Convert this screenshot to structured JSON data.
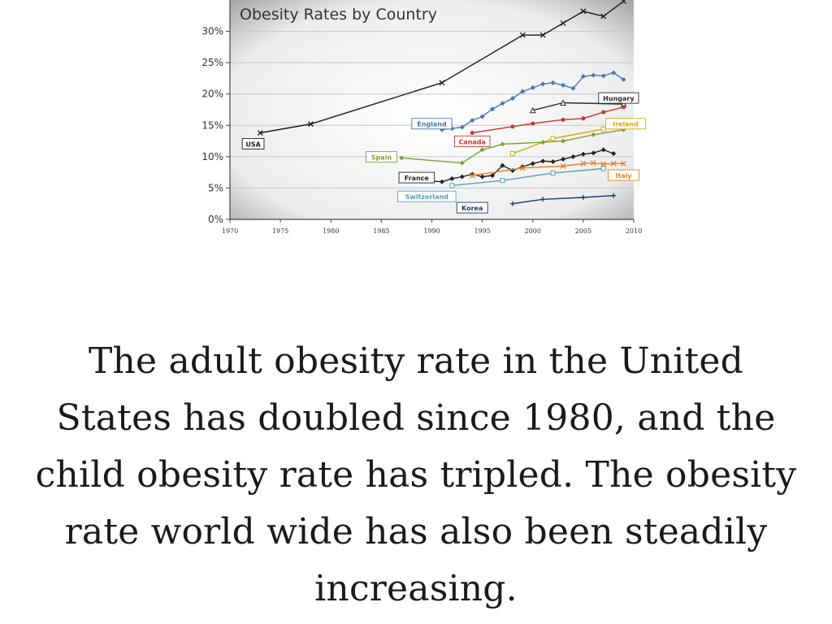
{
  "chart_data": {
    "type": "line",
    "title": "Obesity Rates by Country",
    "xlabel": "",
    "ylabel": "",
    "xlim": [
      1970,
      2010
    ],
    "ylim": [
      0,
      35
    ],
    "grid": true,
    "legend": "inline labels",
    "y_ticks": [
      {
        "value": 0,
        "label": "0%"
      },
      {
        "value": 5,
        "label": "5%"
      },
      {
        "value": 10,
        "label": "10%"
      },
      {
        "value": 15,
        "label": "15%"
      },
      {
        "value": 20,
        "label": "20%"
      },
      {
        "value": 25,
        "label": "25%"
      },
      {
        "value": 30,
        "label": "30%"
      }
    ],
    "x_ticks": [
      {
        "value": 1970,
        "label": "1970"
      },
      {
        "value": 1975,
        "label": "1975"
      },
      {
        "value": 1980,
        "label": "1980"
      },
      {
        "value": 1985,
        "label": "1985"
      },
      {
        "value": 1990,
        "label": "1990"
      },
      {
        "value": 1995,
        "label": "1995"
      },
      {
        "value": 2000,
        "label": "2000"
      },
      {
        "value": 2005,
        "label": "2005"
      },
      {
        "value": 2010,
        "label": "2010"
      }
    ],
    "series": [
      {
        "name": "USA",
        "color": "#1a1a1a",
        "marker": "x",
        "x": [
          1973,
          1978,
          1991,
          1999,
          2001,
          2003,
          2005,
          2007,
          2009
        ],
        "y": [
          13.8,
          15.2,
          21.8,
          29.4,
          29.4,
          31.3,
          33.2,
          32.4,
          34.8
        ]
      },
      {
        "name": "England",
        "color": "#4a76b8",
        "marker": "diamond",
        "x": [
          1991,
          1992,
          1993,
          1994,
          1995,
          1996,
          1997,
          1998,
          1999,
          2000,
          2001,
          2002,
          2003,
          2004,
          2005,
          2006,
          2007,
          2008,
          2009
        ],
        "y": [
          14.3,
          14.5,
          14.7,
          15.8,
          16.4,
          17.6,
          18.5,
          19.3,
          20.4,
          21.0,
          21.6,
          21.8,
          21.4,
          20.9,
          22.8,
          23.0,
          22.9,
          23.4,
          22.3
        ]
      },
      {
        "name": "Hungary",
        "color": "#2a2a2a",
        "marker": "triangle",
        "x": [
          2000,
          2003,
          2009
        ],
        "y": [
          17.4,
          18.6,
          18.4
        ]
      },
      {
        "name": "Canada",
        "color": "#c0392b",
        "marker": "circle",
        "x": [
          1994,
          1998,
          2000,
          2003,
          2005,
          2007,
          2009
        ],
        "y": [
          13.8,
          14.8,
          15.3,
          15.9,
          16.1,
          17.1,
          17.9
        ]
      },
      {
        "name": "Ireland",
        "color": "#d4aa00",
        "marker": "square",
        "x": [
          1998,
          2002,
          2007,
          2009
        ],
        "y": [
          10.5,
          12.9,
          14.4,
          15.0
        ]
      },
      {
        "name": "Spain",
        "color": "#7aa23a",
        "marker": "diamond",
        "x": [
          1987,
          1993,
          1995,
          1997,
          2001,
          2003,
          2006,
          2009
        ],
        "y": [
          9.8,
          9.0,
          11.1,
          12.0,
          12.3,
          12.5,
          13.5,
          14.3
        ]
      },
      {
        "name": "France",
        "color": "#222222",
        "marker": "diamond",
        "x": [
          1990,
          1991,
          1992,
          1993,
          1994,
          1995,
          1996,
          1997,
          1998,
          1999,
          2000,
          2001,
          2002,
          2003,
          2004,
          2005,
          2006,
          2007,
          2008
        ],
        "y": [
          6.1,
          6.0,
          6.5,
          6.8,
          7.2,
          6.8,
          7.0,
          8.6,
          7.8,
          8.4,
          8.9,
          9.3,
          9.2,
          9.6,
          10.0,
          10.4,
          10.6,
          11.1,
          10.5
        ]
      },
      {
        "name": "Italy",
        "color": "#e67e22",
        "marker": "x",
        "x": [
          1994,
          1999,
          2003,
          2005,
          2006,
          2007,
          2008,
          2009
        ],
        "y": [
          7.0,
          8.2,
          8.5,
          8.9,
          9.0,
          8.8,
          8.9,
          8.9
        ]
      },
      {
        "name": "Switzerland",
        "color": "#5aa0b8",
        "marker": "square",
        "x": [
          1992,
          1997,
          2002,
          2007
        ],
        "y": [
          5.4,
          6.2,
          7.4,
          8.1
        ]
      },
      {
        "name": "Korea",
        "color": "#1f3a6e",
        "marker": "plus",
        "x": [
          1998,
          2001,
          2005,
          2008
        ],
        "y": [
          2.5,
          3.2,
          3.5,
          3.8
        ]
      }
    ]
  },
  "caption": "The adult obesity rate in the United States has doubled since 1980, and the child obesity rate has tripled. The obesity rate world wide has also been steadily increasing."
}
